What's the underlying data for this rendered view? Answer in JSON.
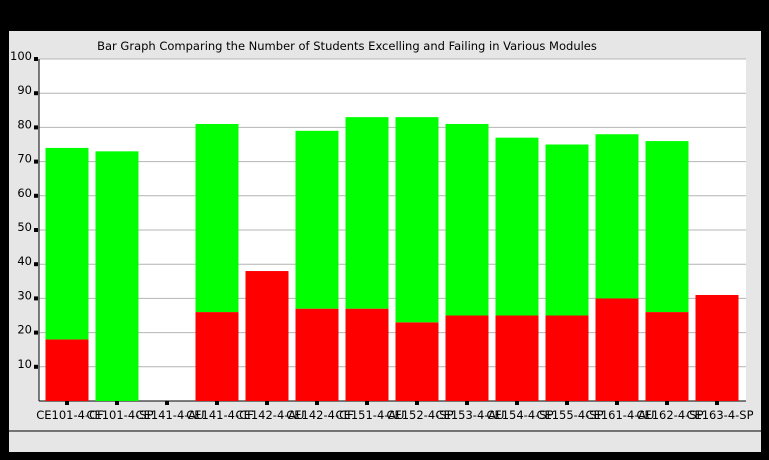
{
  "chart_data": {
    "type": "bar",
    "stacked": true,
    "title": "Bar Graph Comparing the Number of Students Excelling and Failing in Various Modules",
    "categories": [
      "CE101-4-CF",
      "CE101-4-SP",
      "CE141-4-AU",
      "CE141-4-CF",
      "CE142-4-AU",
      "CE142-4-CF",
      "CE151-4-AU",
      "CE152-4-SP",
      "CE153-4-AU",
      "CE154-4-SP",
      "CE155-4-SP",
      "CE161-4-AU",
      "CE162-4-SP",
      "CE163-4-SP"
    ],
    "series": [
      {
        "color": "#ff0000",
        "values": [
          18,
          0,
          0,
          26,
          38,
          27,
          27,
          23,
          25,
          25,
          25,
          30,
          26,
          31
        ]
      },
      {
        "color": "#00ff00",
        "values": [
          56,
          73,
          0,
          55,
          0,
          52,
          56,
          60,
          56,
          52,
          50,
          48,
          50,
          0
        ]
      }
    ],
    "ylim": [
      0,
      100
    ],
    "yticks": [
      10,
      20,
      30,
      40,
      50,
      60,
      70,
      80,
      90,
      100
    ],
    "grid": true,
    "xlabel": "",
    "ylabel": ""
  }
}
